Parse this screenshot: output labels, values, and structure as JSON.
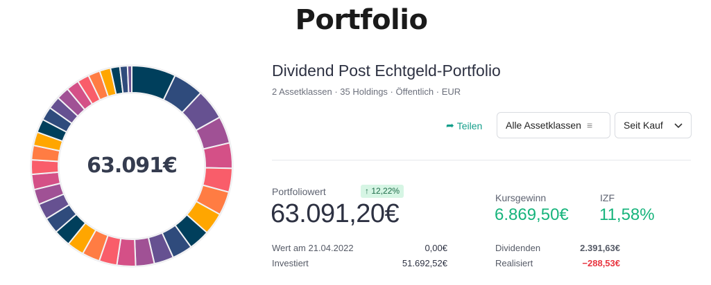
{
  "page_title": "Portfolio",
  "portfolio": {
    "name": "Dividend Post Echtgeld-Portfolio",
    "meta": "2 Assetklassen · 35 Holdings · Öffentlich · EUR"
  },
  "actions": {
    "share": "Teilen",
    "asset_filter": "Alle Assetklassen",
    "period": "Seit Kauf"
  },
  "summary": {
    "value_label": "Portfoliowert",
    "value": "63.091,20€",
    "change_badge": "12,22%",
    "gain_label": "Kursgewinn",
    "gain": "6.869,50€",
    "irr_label": "IZF",
    "irr": "11,58%",
    "rows": [
      {
        "label": "Wert am 21.04.2022",
        "value": "0,00€"
      },
      {
        "label": "Investiert",
        "value": "51.692,52€"
      },
      {
        "label": "Dividenden",
        "value": "2.391,63€"
      },
      {
        "label": "Realisiert",
        "value": "−288,53€"
      }
    ]
  },
  "colors": {
    "green": "#17b47c",
    "red": "#e8343f",
    "palette": [
      "#003f5c",
      "#2f4b7c",
      "#665191",
      "#a05195",
      "#d45087",
      "#f95d6a",
      "#ff7c43",
      "#ffa600"
    ]
  },
  "chart_data": {
    "type": "pie",
    "title": "",
    "center_label": "63.091€",
    "values": [
      26,
      18,
      18,
      16,
      15,
      14,
      14,
      13,
      12.5,
      12,
      11.5,
      11,
      11,
      10.5,
      10.5,
      10,
      10,
      9.5,
      9.5,
      9,
      9,
      8.5,
      8.5,
      8,
      8,
      8,
      7.5,
      7.5,
      7.5,
      7,
      7,
      6.5,
      5.5,
      4.5,
      2.5
    ]
  }
}
